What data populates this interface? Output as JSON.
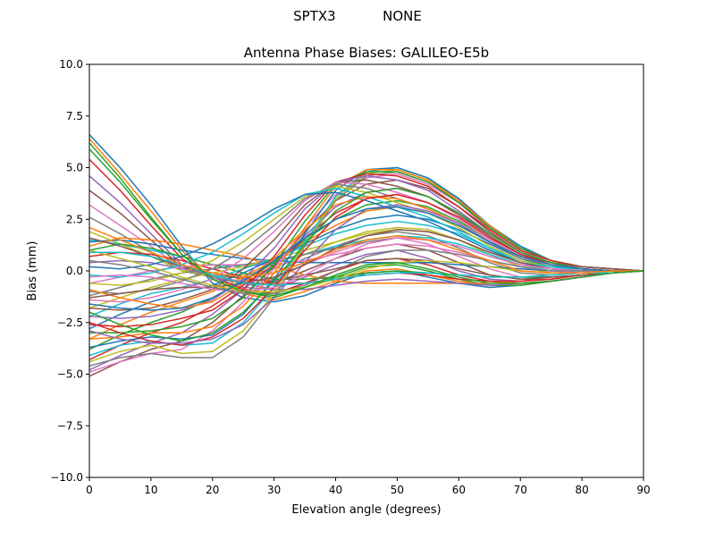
{
  "figure": {
    "suptitle": "SPTX3           NONE"
  },
  "chart_data": {
    "type": "line",
    "title": "Antenna Phase Biases: GALILEO-E5b",
    "xlabel": "Elevation angle (degrees)",
    "ylabel": "Bias (mm)",
    "xlim": [
      0,
      90
    ],
    "ylim": [
      -10,
      10
    ],
    "x": [
      0,
      5,
      10,
      15,
      20,
      25,
      30,
      35,
      40,
      45,
      50,
      55,
      60,
      65,
      70,
      75,
      80,
      85,
      90
    ],
    "x_ticks": [
      0,
      10,
      20,
      30,
      40,
      50,
      60,
      70,
      80,
      90
    ],
    "x_tick_labels": [
      "0",
      "10",
      "20",
      "30",
      "40",
      "50",
      "60",
      "70",
      "80",
      "90"
    ],
    "y_ticks": [
      -10,
      -7.5,
      -5,
      -2.5,
      0,
      2.5,
      5,
      7.5,
      10
    ],
    "y_tick_labels": [
      "−10.0",
      "−7.5",
      "−5.0",
      "−2.5",
      "0.0",
      "2.5",
      "5.0",
      "7.5",
      "10.0"
    ],
    "grid": false,
    "legend": "none",
    "colors": [
      "#1f77b4",
      "#ff7f0e",
      "#2ca02c",
      "#d62728",
      "#9467bd",
      "#8c564b",
      "#e377c2",
      "#7f7f7f",
      "#bcbd22",
      "#17becf"
    ],
    "series": [
      {
        "values": [
          6.6,
          5.0,
          3.2,
          1.2,
          -0.6,
          -1.3,
          -1.5,
          -1.2,
          -0.6,
          -0.1,
          0.0,
          -0.3,
          -0.6,
          -0.8,
          -0.7,
          -0.5,
          -0.3,
          -0.1,
          0.0
        ]
      },
      {
        "values": [
          6.4,
          4.7,
          2.9,
          1.0,
          -0.4,
          -1.1,
          -1.4,
          -1.0,
          -0.5,
          0.0,
          0.1,
          -0.2,
          -0.5,
          -0.7,
          -0.7,
          -0.5,
          -0.3,
          -0.1,
          0.0
        ]
      },
      {
        "values": [
          6.2,
          4.5,
          2.6,
          0.8,
          -0.4,
          -1.0,
          -1.3,
          -0.8,
          -0.3,
          0.2,
          0.3,
          0.0,
          -0.4,
          -0.7,
          -0.7,
          -0.5,
          -0.3,
          -0.1,
          0.0
        ]
      },
      {
        "values": [
          5.4,
          3.9,
          2.2,
          0.6,
          -0.3,
          -0.9,
          -1.1,
          -0.6,
          0.0,
          0.5,
          0.6,
          0.3,
          -0.2,
          -0.5,
          -0.6,
          -0.5,
          -0.3,
          -0.1,
          0.0
        ]
      },
      {
        "values": [
          4.6,
          3.3,
          1.8,
          0.3,
          -0.3,
          -0.8,
          -0.9,
          -0.3,
          0.3,
          0.8,
          1.0,
          0.6,
          0.0,
          -0.4,
          -0.5,
          -0.4,
          -0.2,
          -0.1,
          0.0
        ]
      },
      {
        "values": [
          3.9,
          2.8,
          1.5,
          0.2,
          -0.3,
          -0.6,
          -0.6,
          0.0,
          0.6,
          1.1,
          1.3,
          1.0,
          0.4,
          -0.2,
          -0.4,
          -0.4,
          -0.2,
          -0.1,
          0.0
        ]
      },
      {
        "values": [
          3.2,
          2.2,
          1.2,
          0.1,
          -0.3,
          -0.5,
          -0.4,
          0.3,
          0.9,
          1.4,
          1.6,
          1.3,
          0.7,
          0.1,
          -0.3,
          -0.3,
          -0.2,
          -0.1,
          0.0
        ]
      },
      {
        "values": [
          2.6,
          1.8,
          0.9,
          0.0,
          -0.3,
          -0.3,
          -0.1,
          0.6,
          1.2,
          1.7,
          1.9,
          1.7,
          1.1,
          0.4,
          -0.1,
          -0.2,
          -0.1,
          -0.1,
          0.0
        ]
      },
      {
        "values": [
          1.9,
          1.3,
          0.7,
          0.0,
          -0.2,
          -0.2,
          0.1,
          0.8,
          1.4,
          1.9,
          2.1,
          2.0,
          1.5,
          0.8,
          0.2,
          -0.1,
          -0.1,
          0.0,
          0.0
        ]
      },
      {
        "values": [
          1.5,
          1.3,
          1.0,
          0.7,
          0.3,
          0.2,
          0.4,
          0.8,
          1.2,
          1.5,
          1.7,
          1.6,
          1.3,
          0.8,
          0.3,
          0.0,
          -0.1,
          0.0,
          0.0
        ]
      },
      {
        "values": [
          1.4,
          1.5,
          1.3,
          1.0,
          0.8,
          0.6,
          0.5,
          0.4,
          0.4,
          0.4,
          0.4,
          0.4,
          0.3,
          0.2,
          0.1,
          0.0,
          0.0,
          0.0,
          0.0
        ]
      },
      {
        "values": [
          1.2,
          1.6,
          1.5,
          1.3,
          1.0,
          0.7,
          0.2,
          -0.2,
          -0.5,
          -0.6,
          -0.6,
          -0.6,
          -0.6,
          -0.6,
          -0.5,
          -0.4,
          -0.2,
          -0.1,
          0.0
        ]
      },
      {
        "values": [
          1.0,
          1.3,
          1.1,
          0.7,
          0.3,
          -0.1,
          -0.4,
          -0.4,
          -0.3,
          -0.1,
          0.0,
          -0.1,
          -0.2,
          -0.3,
          -0.3,
          -0.3,
          -0.2,
          -0.1,
          0.0
        ]
      },
      {
        "values": [
          0.7,
          0.9,
          0.8,
          0.5,
          0.1,
          -0.3,
          -0.6,
          -0.6,
          -0.4,
          -0.2,
          -0.1,
          -0.2,
          -0.4,
          -0.5,
          -0.5,
          -0.4,
          -0.2,
          -0.1,
          0.0
        ]
      },
      {
        "values": [
          0.4,
          0.5,
          0.4,
          0.1,
          -0.2,
          -0.6,
          -0.9,
          -0.9,
          -0.7,
          -0.5,
          -0.4,
          -0.5,
          -0.6,
          -0.7,
          -0.6,
          -0.5,
          -0.3,
          -0.1,
          0.0
        ]
      },
      {
        "values": [
          1.6,
          1.2,
          0.7,
          0.2,
          -0.1,
          -0.4,
          -0.5,
          -0.2,
          0.1,
          0.5,
          0.6,
          0.5,
          0.1,
          -0.2,
          -0.4,
          -0.3,
          -0.2,
          -0.1,
          0.0
        ]
      },
      {
        "values": [
          -0.6,
          -0.3,
          0.0,
          0.2,
          0.3,
          0.3,
          0.3,
          0.5,
          0.8,
          1.1,
          1.3,
          1.2,
          0.9,
          0.5,
          0.2,
          0.0,
          -0.1,
          0.0,
          0.0
        ]
      },
      {
        "values": [
          -1.2,
          -0.8,
          -0.4,
          -0.1,
          0.1,
          0.3,
          0.5,
          0.8,
          1.1,
          1.4,
          1.6,
          1.5,
          1.2,
          0.7,
          0.3,
          0.1,
          0.0,
          0.0,
          0.0
        ]
      },
      {
        "values": [
          -1.8,
          -1.3,
          -0.8,
          -0.4,
          -0.1,
          0.2,
          0.6,
          1.0,
          1.4,
          1.8,
          2.0,
          1.9,
          1.5,
          0.9,
          0.4,
          0.1,
          0.0,
          0.0,
          0.0
        ]
      },
      {
        "values": [
          -2.2,
          -1.6,
          -1.1,
          -0.8,
          -0.4,
          0.1,
          0.6,
          1.2,
          1.8,
          2.2,
          2.4,
          2.2,
          1.8,
          1.1,
          0.5,
          0.2,
          0.0,
          0.0,
          0.0
        ]
      },
      {
        "values": [
          -2.8,
          -2.1,
          -1.5,
          -1.1,
          -0.7,
          -0.1,
          0.6,
          1.3,
          2.0,
          2.5,
          2.7,
          2.5,
          2.0,
          1.3,
          0.6,
          0.2,
          0.1,
          0.0,
          0.0
        ]
      },
      {
        "values": [
          -3.3,
          -2.6,
          -2.0,
          -1.5,
          -1.0,
          -0.3,
          0.5,
          1.4,
          2.2,
          2.9,
          3.1,
          2.8,
          2.2,
          1.4,
          0.7,
          0.3,
          0.1,
          0.0,
          0.0
        ]
      },
      {
        "values": [
          -3.8,
          -3.1,
          -2.5,
          -2.0,
          -1.3,
          -0.5,
          0.4,
          1.5,
          2.5,
          3.2,
          3.4,
          3.1,
          2.4,
          1.5,
          0.7,
          0.3,
          0.1,
          0.0,
          0.0
        ]
      },
      {
        "values": [
          -4.3,
          -3.6,
          -3.0,
          -2.5,
          -1.7,
          -0.7,
          0.3,
          1.6,
          2.8,
          3.5,
          3.7,
          3.3,
          2.6,
          1.6,
          0.8,
          0.3,
          0.1,
          0.0,
          0.0
        ]
      },
      {
        "values": [
          -4.8,
          -4.1,
          -3.5,
          -3.0,
          -2.1,
          -0.9,
          0.3,
          1.7,
          3.1,
          3.8,
          4.0,
          3.6,
          2.8,
          1.7,
          0.8,
          0.4,
          0.1,
          0.0,
          0.0
        ]
      },
      {
        "values": [
          -5.1,
          -4.4,
          -3.8,
          -3.4,
          -2.5,
          -1.2,
          0.2,
          1.9,
          3.4,
          4.2,
          4.4,
          4.0,
          3.1,
          1.9,
          0.9,
          0.4,
          0.1,
          0.0,
          0.0
        ]
      },
      {
        "values": [
          -4.9,
          -4.4,
          -4.0,
          -3.8,
          -2.9,
          -1.5,
          0.1,
          2.1,
          3.7,
          4.5,
          4.7,
          4.2,
          3.3,
          2.0,
          1.0,
          0.4,
          0.1,
          0.0,
          0.0
        ]
      },
      {
        "values": [
          -4.6,
          -4.2,
          -4.0,
          -4.2,
          -4.2,
          -3.2,
          -1.3,
          1.2,
          3.4,
          4.6,
          4.8,
          4.3,
          3.4,
          2.1,
          1.1,
          0.5,
          0.2,
          0.1,
          0.0
        ]
      },
      {
        "values": [
          -4.4,
          -3.9,
          -3.6,
          -4.0,
          -3.9,
          -2.9,
          -1.1,
          1.3,
          3.5,
          4.7,
          4.9,
          4.4,
          3.5,
          2.2,
          1.1,
          0.5,
          0.2,
          0.1,
          0.0
        ]
      },
      {
        "values": [
          -4.1,
          -3.6,
          -3.4,
          -3.6,
          -3.5,
          -2.5,
          -0.8,
          1.4,
          3.6,
          4.8,
          5.0,
          4.5,
          3.5,
          2.2,
          1.2,
          0.5,
          0.2,
          0.1,
          0.0
        ]
      },
      {
        "values": [
          -3.7,
          -3.4,
          -3.2,
          -3.3,
          -3.1,
          -2.1,
          -0.4,
          1.8,
          3.9,
          4.9,
          5.0,
          4.5,
          3.5,
          2.2,
          1.2,
          0.5,
          0.2,
          0.1,
          0.0
        ]
      },
      {
        "values": [
          -3.3,
          -3.2,
          -3.0,
          -3.0,
          -2.7,
          -1.7,
          -0.1,
          2.1,
          4.1,
          4.9,
          4.9,
          4.4,
          3.4,
          2.2,
          1.1,
          0.5,
          0.2,
          0.1,
          0.0
        ]
      },
      {
        "values": [
          -3.0,
          -3.0,
          -2.9,
          -2.7,
          -2.3,
          -1.3,
          0.3,
          2.4,
          4.2,
          4.8,
          4.8,
          4.3,
          3.3,
          2.1,
          1.1,
          0.5,
          0.2,
          0.1,
          0.0
        ]
      },
      {
        "values": [
          -2.6,
          -2.7,
          -2.6,
          -2.3,
          -1.9,
          -0.9,
          0.7,
          2.7,
          4.3,
          4.7,
          4.6,
          4.1,
          3.1,
          2.0,
          1.0,
          0.5,
          0.2,
          0.1,
          0.0
        ]
      },
      {
        "values": [
          -2.2,
          -2.3,
          -2.2,
          -1.9,
          -1.4,
          -0.4,
          1.1,
          3.0,
          4.3,
          4.6,
          4.4,
          3.9,
          2.9,
          1.8,
          0.9,
          0.4,
          0.2,
          0.1,
          0.0
        ]
      },
      {
        "values": [
          -1.8,
          -1.9,
          -1.8,
          -1.4,
          -0.9,
          0.1,
          1.5,
          3.2,
          4.3,
          4.4,
          4.1,
          3.6,
          2.7,
          1.7,
          0.8,
          0.4,
          0.2,
          0.1,
          0.0
        ]
      },
      {
        "values": [
          -1.4,
          -1.5,
          -1.3,
          -0.9,
          -0.4,
          0.6,
          1.9,
          3.4,
          4.3,
          4.2,
          3.8,
          3.3,
          2.5,
          1.5,
          0.7,
          0.3,
          0.1,
          0.0,
          0.0
        ]
      },
      {
        "values": [
          -1.0,
          -1.1,
          -0.9,
          -0.5,
          0.1,
          1.0,
          2.2,
          3.5,
          4.2,
          4.0,
          3.5,
          3.0,
          2.3,
          1.4,
          0.6,
          0.3,
          0.1,
          0.0,
          0.0
        ]
      },
      {
        "values": [
          -0.6,
          -0.7,
          -0.5,
          -0.1,
          0.5,
          1.4,
          2.5,
          3.6,
          4.1,
          3.8,
          3.3,
          2.8,
          2.1,
          1.2,
          0.5,
          0.2,
          0.1,
          0.0,
          0.0
        ]
      },
      {
        "values": [
          -0.2,
          -0.3,
          -0.1,
          0.3,
          0.9,
          1.8,
          2.8,
          3.7,
          4.0,
          3.6,
          3.1,
          2.6,
          1.9,
          1.1,
          0.4,
          0.2,
          0.1,
          0.0,
          0.0
        ]
      },
      {
        "values": [
          0.2,
          0.1,
          0.3,
          0.7,
          1.3,
          2.1,
          3.0,
          3.7,
          3.8,
          3.4,
          2.9,
          2.4,
          1.7,
          1.0,
          0.4,
          0.1,
          0.0,
          0.0,
          0.0
        ]
      },
      {
        "values": [
          -0.9,
          -1.3,
          -1.6,
          -1.8,
          -1.5,
          -0.6,
          0.6,
          2.0,
          3.2,
          3.6,
          3.5,
          3.0,
          2.3,
          1.4,
          0.7,
          0.3,
          0.1,
          0.0,
          0.0
        ]
      },
      {
        "values": [
          -2.0,
          -2.6,
          -3.1,
          -3.4,
          -3.0,
          -2.0,
          -0.5,
          1.3,
          2.9,
          3.8,
          4.0,
          3.6,
          2.8,
          1.8,
          0.9,
          0.4,
          0.1,
          0.0,
          0.0
        ]
      },
      {
        "values": [
          -2.5,
          -3.0,
          -3.4,
          -3.6,
          -3.2,
          -2.3,
          -0.8,
          1.0,
          2.6,
          3.5,
          3.7,
          3.3,
          2.6,
          1.6,
          0.8,
          0.3,
          0.1,
          0.0,
          0.0
        ]
      },
      {
        "values": [
          -2.9,
          -3.3,
          -3.5,
          -3.5,
          -3.3,
          -2.6,
          -1.3,
          0.4,
          2.0,
          3.0,
          3.2,
          2.9,
          2.3,
          1.4,
          0.7,
          0.3,
          0.1,
          0.0,
          0.0
        ]
      },
      {
        "values": [
          -1.3,
          -1.1,
          -0.9,
          -0.8,
          -0.8,
          -0.6,
          -0.3,
          0.3,
          1.1,
          1.7,
          2.0,
          1.9,
          1.5,
          0.9,
          0.4,
          0.1,
          0.0,
          0.0,
          0.0
        ]
      },
      {
        "values": [
          -0.3,
          -0.2,
          -0.3,
          -0.6,
          -0.9,
          -1.0,
          -0.8,
          -0.2,
          0.6,
          1.3,
          1.6,
          1.5,
          1.2,
          0.7,
          0.3,
          0.1,
          0.0,
          0.0,
          0.0
        ]
      },
      {
        "values": [
          0.5,
          0.3,
          0.0,
          -0.4,
          -0.8,
          -1.1,
          -1.1,
          -0.7,
          0.0,
          0.7,
          1.0,
          1.0,
          0.8,
          0.5,
          0.2,
          0.0,
          0.0,
          0.0,
          0.0
        ]
      },
      {
        "values": [
          1.0,
          0.6,
          0.2,
          -0.3,
          -0.7,
          -1.0,
          -1.0,
          -0.8,
          -0.4,
          0.1,
          0.4,
          0.5,
          0.4,
          0.2,
          0.0,
          -0.1,
          -0.1,
          0.0,
          0.0
        ]
      },
      {
        "values": [
          0.9,
          0.9,
          0.7,
          0.3,
          -0.2,
          -0.6,
          -0.7,
          -0.6,
          -0.4,
          -0.2,
          -0.1,
          -0.1,
          -0.2,
          -0.3,
          -0.3,
          -0.2,
          -0.1,
          -0.1,
          0.0
        ]
      },
      {
        "values": [
          -1.6,
          -1.8,
          -1.9,
          -1.8,
          -1.3,
          -0.5,
          0.5,
          1.6,
          2.5,
          3.0,
          3.1,
          2.8,
          2.2,
          1.4,
          0.7,
          0.3,
          0.1,
          0.0,
          0.0
        ]
      },
      {
        "values": [
          2.1,
          1.5,
          0.9,
          0.3,
          -0.1,
          -0.3,
          -0.1,
          0.4,
          1.0,
          1.5,
          1.7,
          1.5,
          1.0,
          0.5,
          0.0,
          -0.1,
          -0.1,
          0.0,
          0.0
        ]
      },
      {
        "values": [
          5.9,
          4.3,
          2.5,
          0.8,
          -0.4,
          -1.0,
          -1.2,
          -0.8,
          -0.2,
          0.3,
          0.4,
          0.1,
          -0.3,
          -0.6,
          -0.6,
          -0.5,
          -0.3,
          -0.1,
          0.0
        ]
      }
    ]
  }
}
